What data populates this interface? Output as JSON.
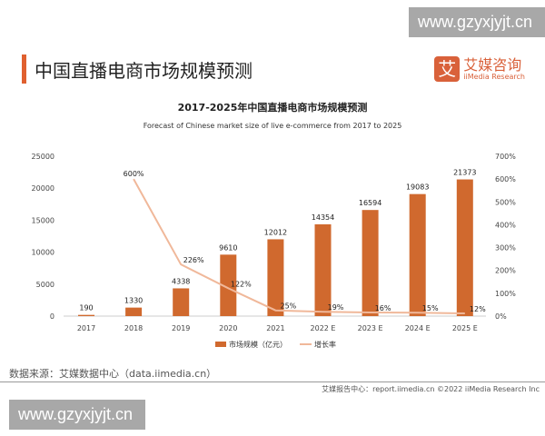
{
  "watermark": "www.gzyxjyjt.cn",
  "page_title": "中国直播电商市场规模预测",
  "logo": {
    "mark": "艾",
    "name": "艾媒咨询",
    "sub": "iiMedia Research"
  },
  "source": "数据来源：艾媒数据中心（data.iimedia.cn）",
  "footer": "艾媒报告中心：report.iimedia.cn   ©2022  iiMedia Research  Inc",
  "colors": {
    "bar": "#d0692e",
    "line": "#f0b89a",
    "accent": "#e0602f"
  },
  "chart_data": {
    "type": "bar+line",
    "title": "2017-2025年中国直播电商市场规模预测",
    "subtitle": "Forecast of Chinese market size of live e-commerce from 2017 to 2025",
    "categories": [
      "2017",
      "2018",
      "2019",
      "2020",
      "2021",
      "2022 E",
      "2023 E",
      "2024 E",
      "2025 E"
    ],
    "series": [
      {
        "name": "市场规模（亿元）",
        "type": "bar",
        "axis": "left",
        "values": [
          190,
          1330,
          4338,
          9610,
          12012,
          14354,
          16594,
          19083,
          21373
        ]
      },
      {
        "name": "增长率",
        "type": "line",
        "axis": "right",
        "values": [
          null,
          600,
          226,
          122,
          25,
          19,
          16,
          15,
          12
        ],
        "labels": [
          "",
          "600%",
          "226%",
          "122%",
          "25%",
          "19%",
          "16%",
          "15%",
          "12%"
        ]
      }
    ],
    "y_left": {
      "range": [
        0,
        25000
      ],
      "ticks": [
        "0",
        "5000",
        "10000",
        "15000",
        "20000",
        "25000"
      ]
    },
    "y_right": {
      "range": [
        0,
        700
      ],
      "ticks": [
        "0%",
        "100%",
        "200%",
        "300%",
        "400%",
        "500%",
        "600%",
        "700%"
      ]
    },
    "legend": "bottom",
    "grid": false
  }
}
